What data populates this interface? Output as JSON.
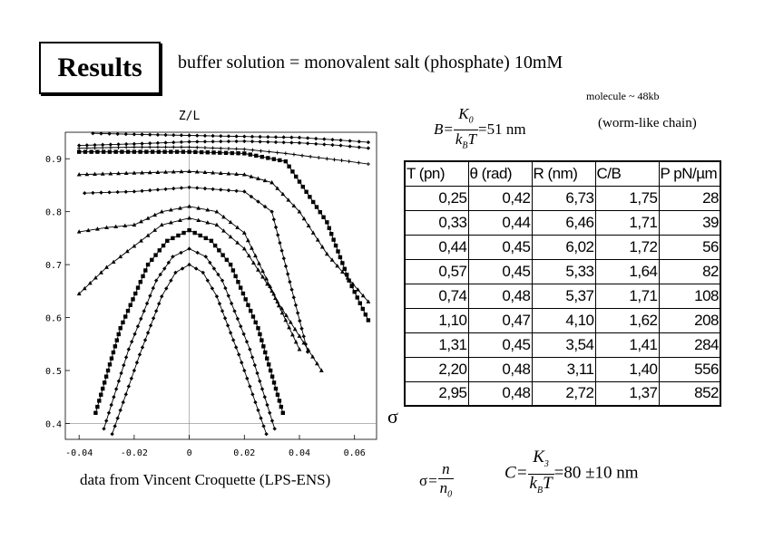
{
  "header": {
    "title": "Results",
    "subtitle": "buffer solution = monovalent salt (phosphate) 10mM",
    "molecule_note": "molecule ~ 48kb",
    "model_note": "(worm-like chain)"
  },
  "equations": {
    "B": {
      "lhs": "B",
      "num": "K",
      "num_sub": "0",
      "den": "k",
      "den_sub": "B",
      "den_tail": "T",
      "rhs": "=51  nm"
    },
    "sigma": {
      "lhs": "σ",
      "num": "n",
      "den": "n",
      "den_sub": "0"
    },
    "C": {
      "lhs": "C",
      "num": "K",
      "num_sub": "3",
      "den": "k",
      "den_sub": "B",
      "den_tail": "T",
      "rhs": "=80 ±10  nm"
    }
  },
  "footer": {
    "source": "data from Vincent Croquette (LPS-ENS)",
    "sigma_axis_label": "σ"
  },
  "table": {
    "headers": [
      "T (pn)",
      "θ (rad)",
      "R (nm)",
      "C/B",
      "P pN/µm"
    ],
    "rows": [
      [
        "0,25",
        "0,42",
        "6,73",
        "1,75",
        "28"
      ],
      [
        "0,33",
        "0,44",
        "6,46",
        "1,71",
        "39"
      ],
      [
        "0,44",
        "0,45",
        "6,02",
        "1,72",
        "56"
      ],
      [
        "0,57",
        "0,45",
        "5,33",
        "1,64",
        "82"
      ],
      [
        "0,74",
        "0,48",
        "5,37",
        "1,71",
        "108"
      ],
      [
        "1,10",
        "0,47",
        "4,10",
        "1,62",
        "208"
      ],
      [
        "1,31",
        "0,45",
        "3,54",
        "1,41",
        "284"
      ],
      [
        "2,20",
        "0,48",
        "3,11",
        "1,40",
        "556"
      ],
      [
        "2,95",
        "0,48",
        "2,72",
        "1,37",
        "852"
      ]
    ]
  },
  "chart_data": {
    "type": "scatter",
    "title": "",
    "xlabel": "",
    "ylabel": "Z/L",
    "xlim": [
      -0.045,
      0.068
    ],
    "ylim": [
      0.37,
      0.95
    ],
    "grid": false,
    "x_ticks": [
      "-0.04",
      "-0.02",
      "0",
      "0.02",
      "0.04",
      "0.06"
    ],
    "x_tick_values": [
      -0.04,
      -0.02,
      0,
      0.02,
      0.04,
      0.06
    ],
    "y_ticks": [
      "0.4",
      "0.5",
      "0.6",
      "0.7",
      "0.8",
      "0.9"
    ],
    "y_tick_values": [
      0.4,
      0.5,
      0.6,
      0.7,
      0.8,
      0.9
    ],
    "series": [
      {
        "marker": "diamond",
        "x": [
          -0.035,
          -0.02,
          0,
          0.02,
          0.04,
          0.055,
          0.065
        ],
        "y": [
          0.948,
          0.946,
          0.944,
          0.942,
          0.94,
          0.935,
          0.931
        ]
      },
      {
        "marker": "diamond",
        "x": [
          -0.04,
          -0.02,
          0,
          0.02,
          0.04,
          0.055,
          0.065
        ],
        "y": [
          0.925,
          0.928,
          0.932,
          0.933,
          0.93,
          0.925,
          0.92
        ]
      },
      {
        "marker": "square",
        "x": [
          -0.04,
          -0.02,
          0,
          0.02,
          0.035,
          0.05,
          0.058,
          0.065
        ],
        "y": [
          0.913,
          0.913,
          0.913,
          0.91,
          0.895,
          0.78,
          0.67,
          0.595
        ]
      },
      {
        "marker": "plus",
        "x": [
          -0.04,
          -0.02,
          0,
          0.02,
          0.035,
          0.05,
          0.058,
          0.065
        ],
        "y": [
          0.92,
          0.922,
          0.922,
          0.918,
          0.91,
          0.9,
          0.895,
          0.89
        ]
      },
      {
        "marker": "triangle",
        "x": [
          -0.04,
          -0.02,
          0,
          0.02,
          0.03,
          0.04,
          0.05,
          0.065
        ],
        "y": [
          0.87,
          0.873,
          0.876,
          0.87,
          0.855,
          0.8,
          0.72,
          0.63
        ]
      },
      {
        "marker": "diamond",
        "x": [
          -0.038,
          -0.02,
          0,
          0.02,
          0.03,
          0.043
        ],
        "y": [
          0.835,
          0.838,
          0.846,
          0.838,
          0.8,
          0.535
        ]
      },
      {
        "marker": "triangle",
        "x": [
          -0.04,
          -0.03,
          -0.02,
          -0.01,
          0,
          0.01,
          0.02,
          0.032,
          0.048
        ],
        "y": [
          0.762,
          0.77,
          0.775,
          0.8,
          0.81,
          0.8,
          0.76,
          0.63,
          0.5
        ]
      },
      {
        "marker": "triangle",
        "x": [
          -0.04,
          -0.03,
          -0.02,
          -0.01,
          0,
          0.01,
          0.02,
          0.03,
          0.04
        ],
        "y": [
          0.645,
          0.695,
          0.735,
          0.775,
          0.788,
          0.775,
          0.73,
          0.65,
          0.54
        ]
      },
      {
        "marker": "square",
        "x": [
          -0.034,
          -0.025,
          -0.015,
          -0.008,
          0,
          0.008,
          0.015,
          0.025,
          0.034
        ],
        "y": [
          0.42,
          0.58,
          0.7,
          0.745,
          0.765,
          0.745,
          0.7,
          0.58,
          0.42
        ]
      },
      {
        "marker": "diamond",
        "x": [
          -0.031,
          -0.022,
          -0.012,
          -0.006,
          0,
          0.006,
          0.012,
          0.022,
          0.031
        ],
        "y": [
          0.39,
          0.54,
          0.67,
          0.715,
          0.73,
          0.715,
          0.67,
          0.54,
          0.39
        ]
      },
      {
        "marker": "diamond",
        "x": [
          -0.028,
          -0.018,
          -0.01,
          -0.005,
          0,
          0.005,
          0.01,
          0.018,
          0.028
        ],
        "y": [
          0.38,
          0.53,
          0.64,
          0.685,
          0.7,
          0.685,
          0.64,
          0.53,
          0.38
        ]
      }
    ]
  }
}
